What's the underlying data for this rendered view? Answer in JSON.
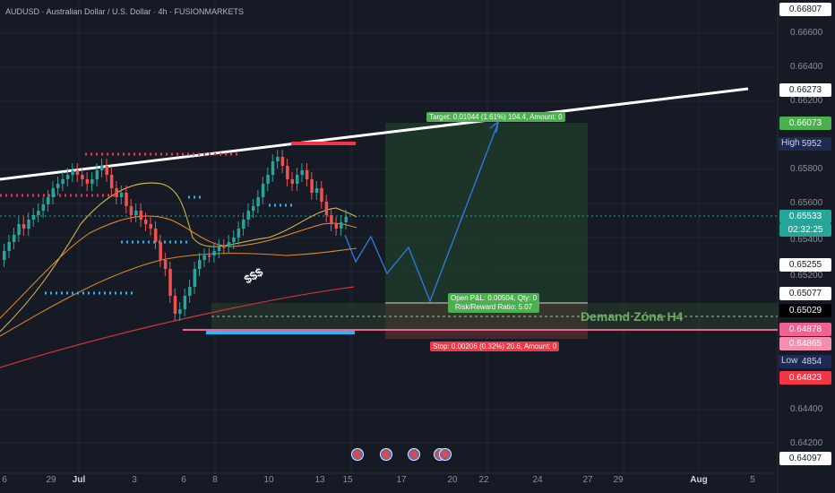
{
  "header": {
    "title": "AUDUSD · Australian Dollar / U.S. Dollar · 4h · FUSIONMARKETS"
  },
  "price_scale": {
    "ticks": [
      "0.66600",
      "0.66400",
      "0.66200",
      "0.65800",
      "0.65600",
      "0.65400",
      "0.65200",
      "0.64400",
      "0.64200"
    ],
    "labels": [
      {
        "text": "0.66807",
        "bg": "#ffffff",
        "fg": "#131722"
      },
      {
        "text": "0.66273",
        "bg": "#ffffff",
        "fg": "#131722"
      },
      {
        "text": "0.66073",
        "bg": "#4caf50",
        "fg": "#ffffff"
      },
      {
        "text": "0.65952",
        "bg": "#1e2a55",
        "fg": "#d1d4dc"
      },
      {
        "text": "0.65533",
        "bg": "#26a69a",
        "fg": "#ffffff"
      },
      {
        "text": "02:32:25",
        "bg": "#26a69a",
        "fg": "#ffffff"
      },
      {
        "text": "0.65255",
        "bg": "#ffffff",
        "fg": "#131722"
      },
      {
        "text": "0.65077",
        "bg": "#ffffff",
        "fg": "#131722"
      },
      {
        "text": "0.65029",
        "bg": "#000000",
        "fg": "#ffffff"
      },
      {
        "text": "0.64878",
        "bg": "#f06292",
        "fg": "#ffffff"
      },
      {
        "text": "0.64865",
        "bg": "#f48fb1",
        "fg": "#ffffff"
      },
      {
        "text": "0.64854",
        "bg": "#1e2a55",
        "fg": "#d1d4dc"
      },
      {
        "text": "0.64823",
        "bg": "#f23645",
        "fg": "#ffffff"
      },
      {
        "text": "0.64097",
        "bg": "#ffffff",
        "fg": "#131722"
      }
    ],
    "high_tag": "High",
    "low_tag": "Low"
  },
  "time_axis": [
    "6",
    "29",
    "Jul",
    "3",
    "6",
    "8",
    "10",
    "13",
    "15",
    "17",
    "20",
    "22",
    "24",
    "27",
    "29",
    "Aug",
    "5"
  ],
  "annotations": {
    "target": "Target: 0.01044 (1.61%) 104.4, Amount: 0",
    "open_pl": "Open P&L: 0.00504, Qty: 0",
    "rr": "Risk/Reward Ratio: 5.07",
    "stop": "Stop: 0.00206 (0.32%) 20.6, Amount: 0",
    "demand": "Demand Zóna H4",
    "dollars": "$$$"
  },
  "colors": {
    "bg": "#161a25",
    "bull": "#26a69a",
    "bear": "#ef5350",
    "target": "#4caf50",
    "stop": "#f23645"
  }
}
